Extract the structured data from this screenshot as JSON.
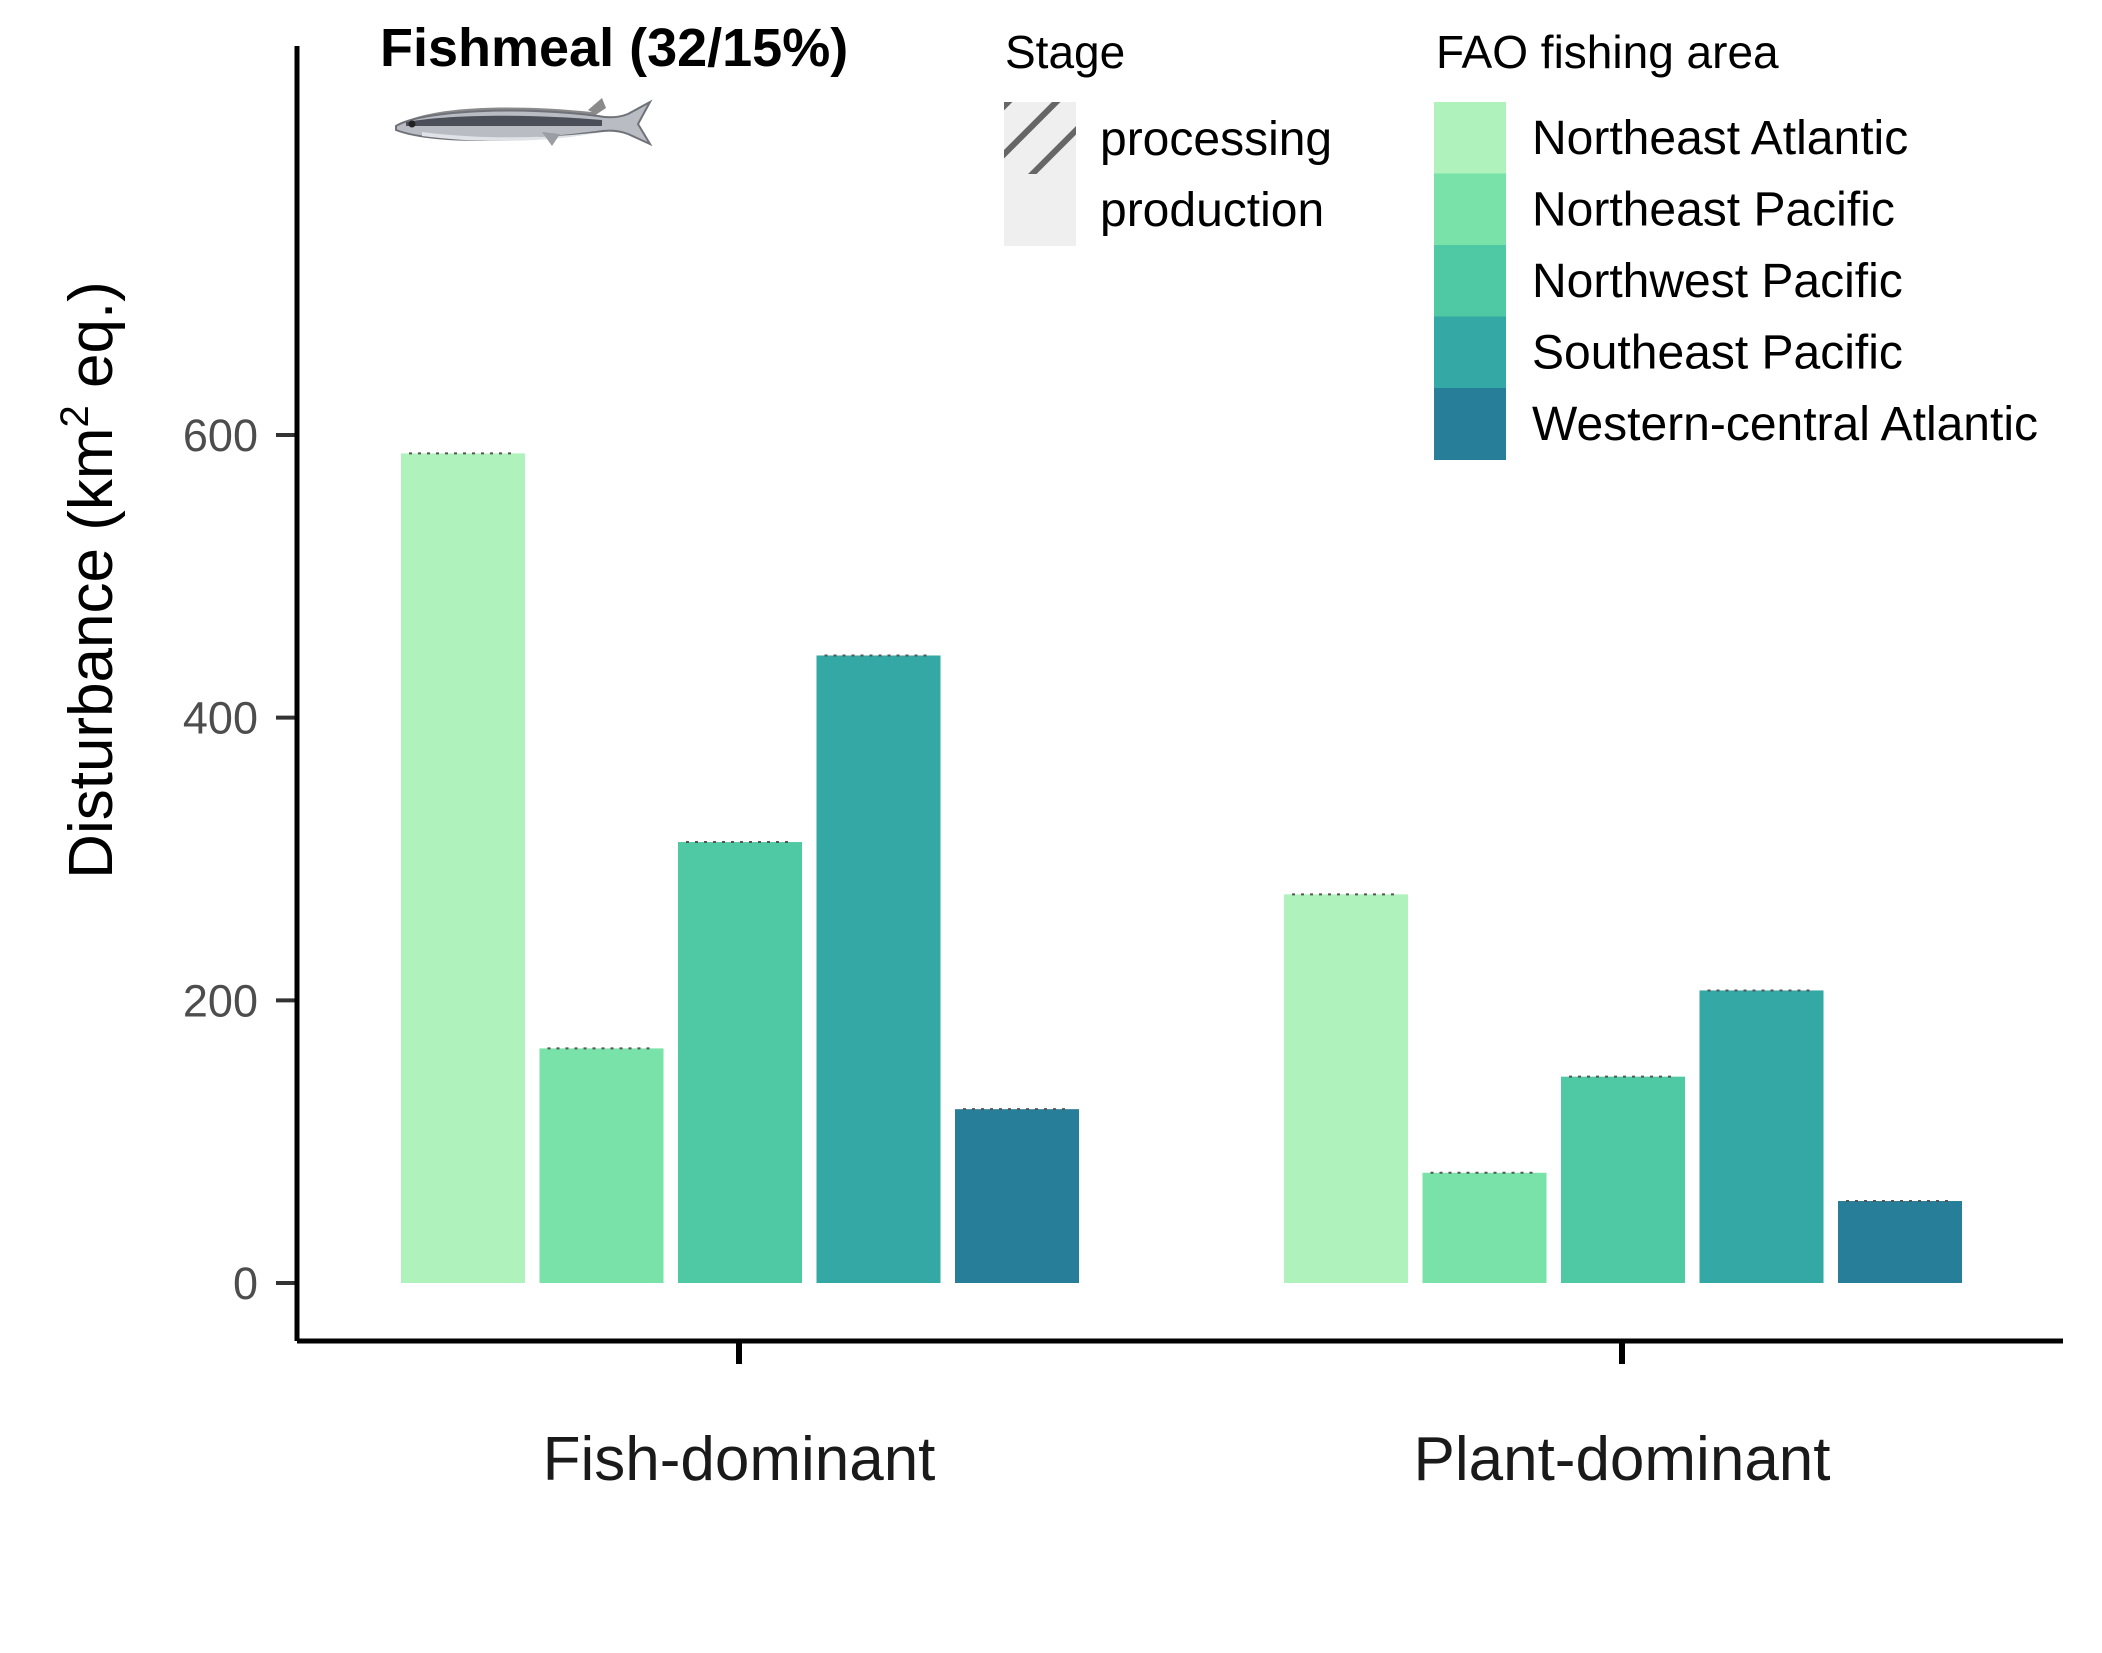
{
  "chart_data": {
    "type": "bar",
    "title": "Fishmeal (32/15%)",
    "ylabel_prefix": "Disturbance (km",
    "ylabel_sup": "2",
    "ylabel_suffix": " eq.)",
    "xlabel": "",
    "ylim": [
      0,
      650
    ],
    "yticks": [
      0,
      200,
      400,
      600
    ],
    "ytick_labels": [
      "0",
      "200",
      "400",
      "600"
    ],
    "categories": [
      "Fish-dominant",
      "Plant-dominant"
    ],
    "series": [
      {
        "name": "Northeast Atlantic",
        "color": "#aff2bc",
        "values": [
          587,
          275
        ]
      },
      {
        "name": "Northeast Pacific",
        "color": "#78e2a8",
        "values": [
          166,
          78
        ]
      },
      {
        "name": "Northwest Pacific",
        "color": "#4fc9a3",
        "values": [
          312,
          146
        ]
      },
      {
        "name": "Southeast Pacific",
        "color": "#34a8a4",
        "values": [
          444,
          207
        ]
      },
      {
        "name": "Western-central Atlantic",
        "color": "#277e98",
        "values": [
          123,
          58
        ]
      }
    ],
    "stage_legend": {
      "title": "Stage",
      "items": [
        {
          "label": "processing",
          "pattern": "hatched"
        },
        {
          "label": "production",
          "pattern": "solid"
        }
      ]
    },
    "area_legend_title": "FAO fishing area",
    "icon": "fish-icon"
  }
}
